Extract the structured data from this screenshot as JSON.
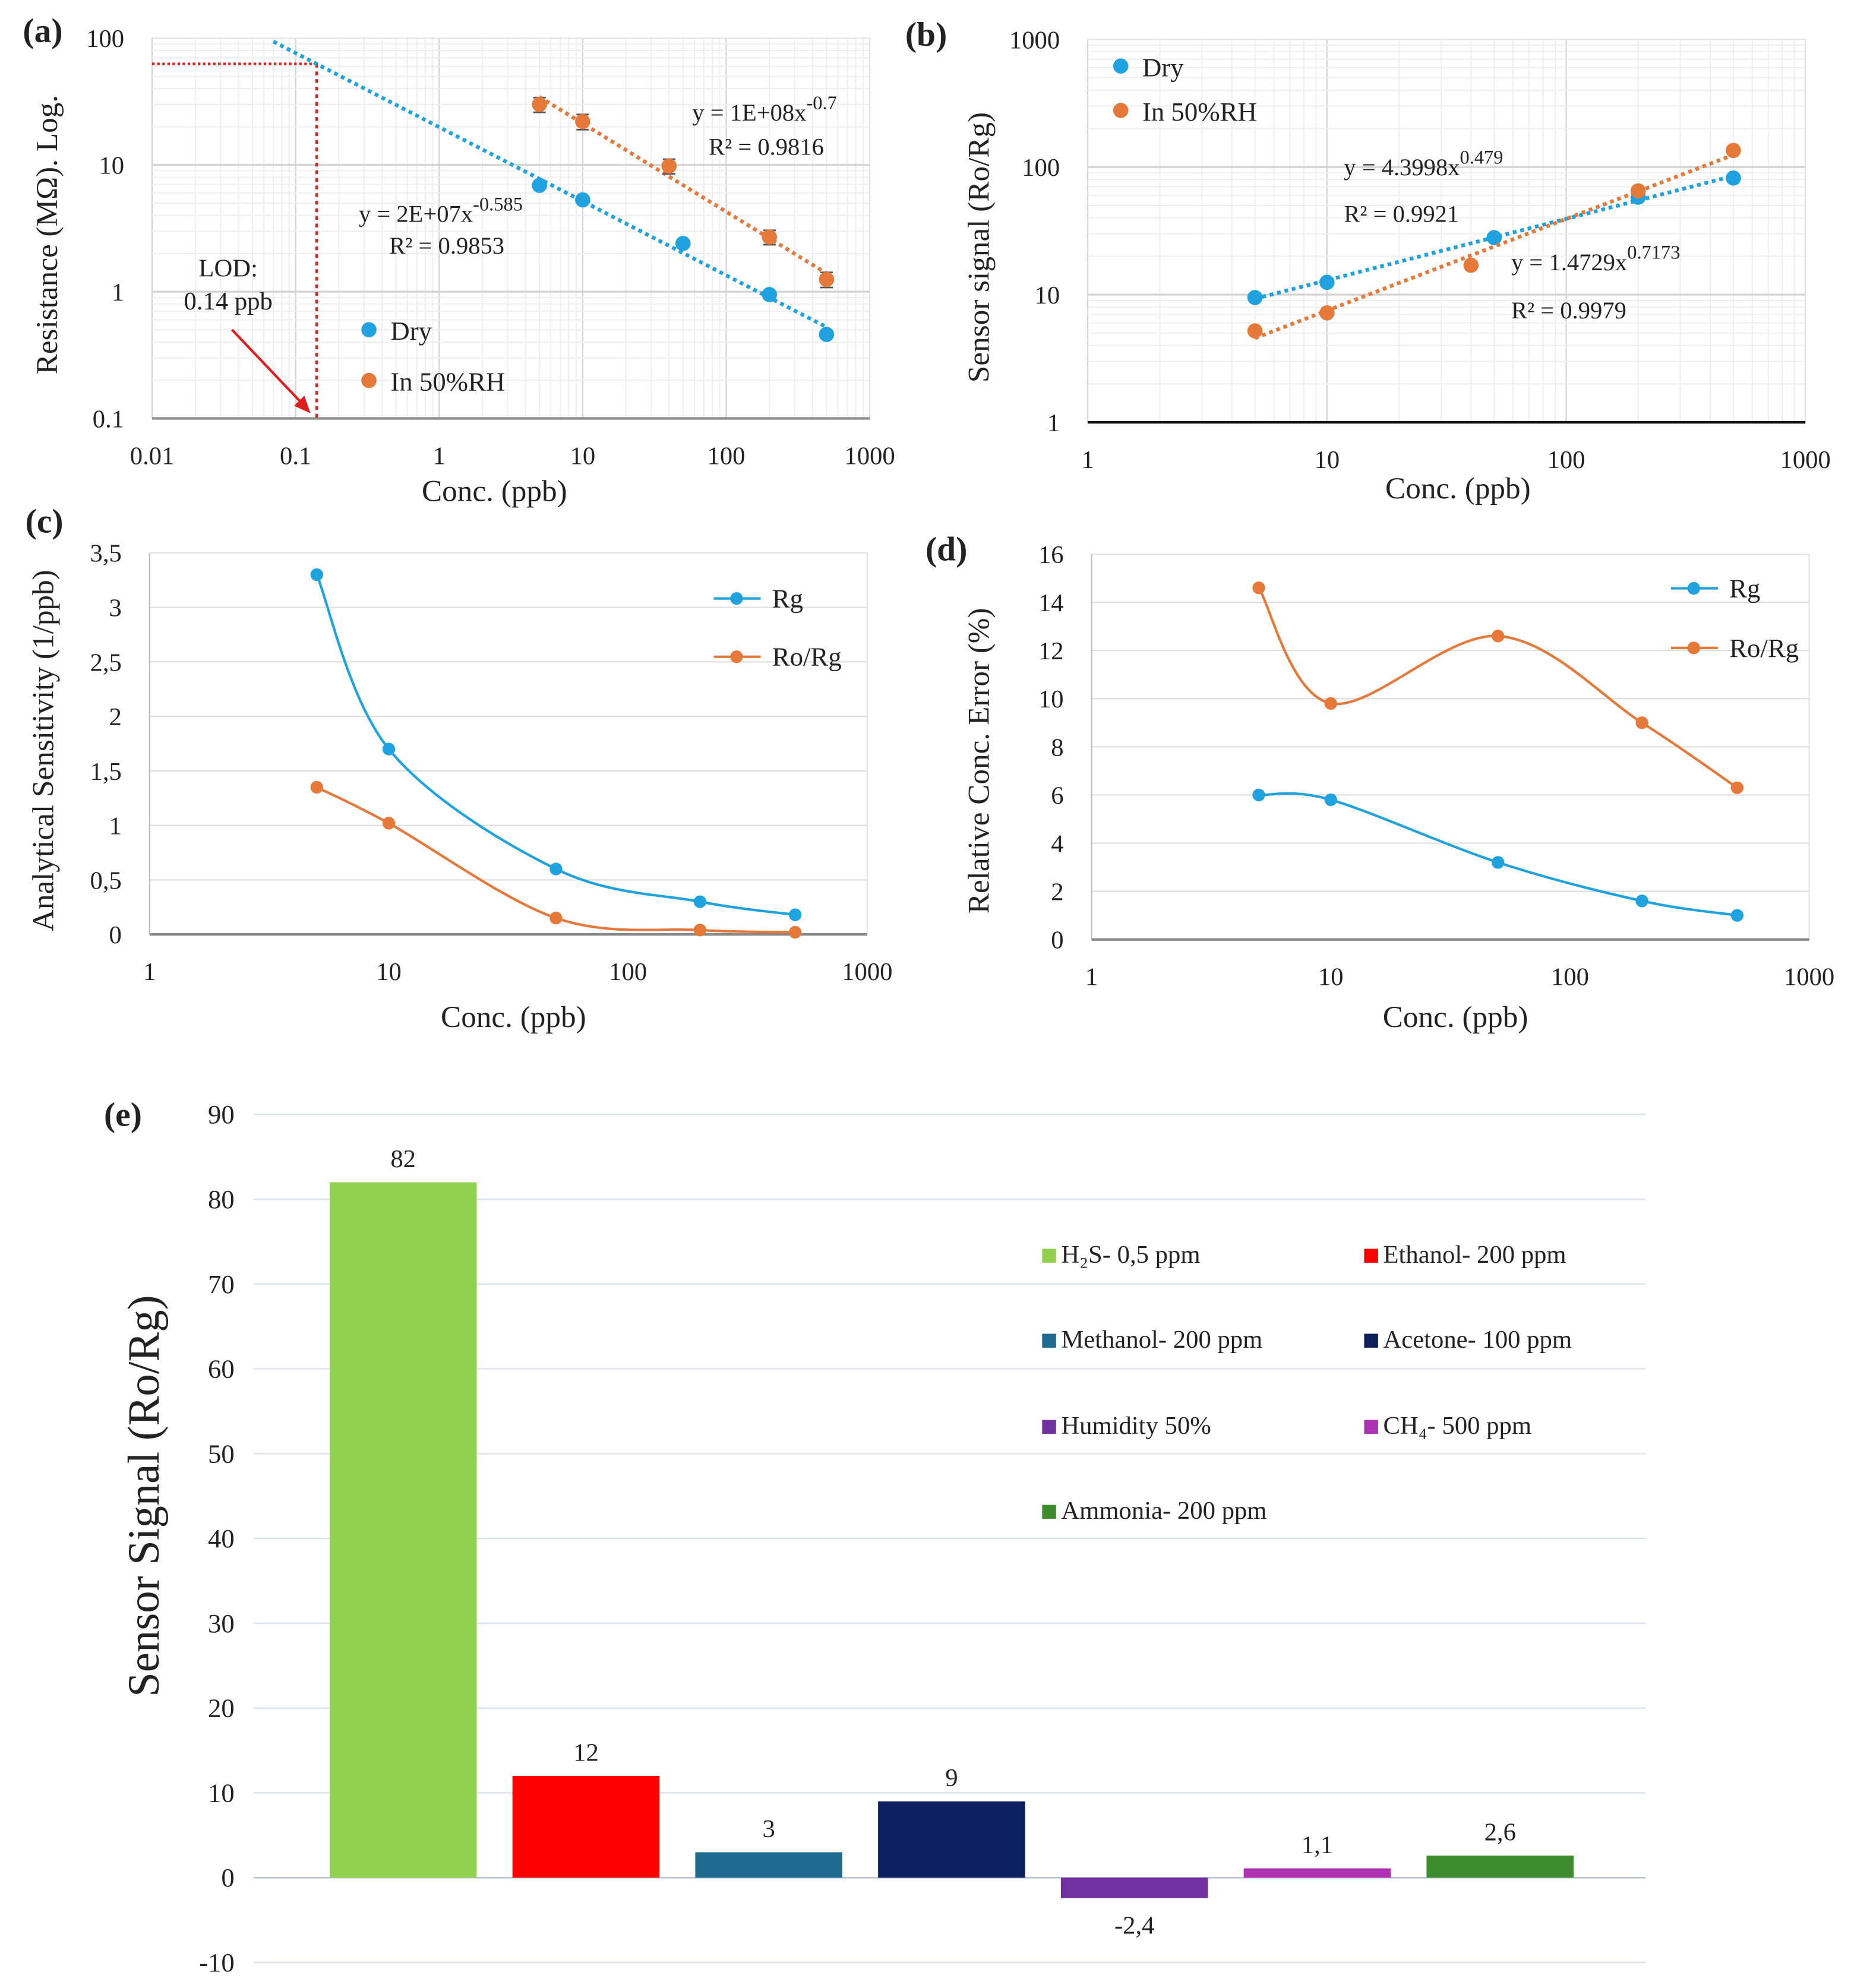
{
  "panel_labels": [
    "(a)",
    "(b)",
    "(c)",
    "(d)",
    "(e)"
  ],
  "colors": {
    "blue": "#1fa2dd",
    "orange": "#e4793a",
    "lod": "#dd1f1f"
  },
  "chart_data": [
    {
      "panel": "(a)",
      "type": "scatter",
      "xlabel": "Conc. (ppb)",
      "ylabel": "Resistance (MΩ). Log.",
      "xscale": "log",
      "yscale": "log",
      "xlim": [
        0.01,
        1000
      ],
      "ylim": [
        0.1,
        100
      ],
      "x_ticks": [
        "0.01",
        "0.1",
        "1",
        "10",
        "100",
        "1000"
      ],
      "y_ticks": [
        "0.1",
        "1",
        "10",
        "100"
      ],
      "grid": true,
      "legend_position": "bottom-center",
      "lod": {
        "title": "LOD:",
        "value_label": "0.14 ppb",
        "value": 0.14
      },
      "series": [
        {
          "name": "Dry",
          "color": "#1fa2dd",
          "x": [
            5,
            10,
            50,
            200,
            500
          ],
          "y": [
            6.9,
            5.3,
            2.4,
            0.95,
            0.46
          ],
          "trendline": {
            "type": "power",
            "equation": "y = 2E+07x",
            "exponent": "-0.585",
            "r2": "R² = 0.9853",
            "from": 0.07,
            "to": 500
          }
        },
        {
          "name": "In 50%RH",
          "color": "#e4793a",
          "x": [
            5,
            10,
            40,
            200,
            500
          ],
          "y": [
            30,
            22,
            9.8,
            2.7,
            1.25
          ],
          "error": [
            4,
            3,
            1.3,
            0.35,
            0.17
          ],
          "trendline": {
            "type": "power",
            "equation": "y = 1E+08x",
            "exponent": "-0.7",
            "r2": "R² = 0.9816",
            "from": 5,
            "to": 500
          }
        }
      ]
    },
    {
      "panel": "(b)",
      "type": "scatter",
      "xlabel": "Conc. (ppb)",
      "ylabel": "Sensor signal (Ro/Rg)",
      "xscale": "log",
      "yscale": "log",
      "xlim": [
        1,
        1000
      ],
      "ylim": [
        1,
        1000
      ],
      "x_ticks": [
        "1",
        "10",
        "100",
        "1000"
      ],
      "y_ticks": [
        "1",
        "10",
        "100",
        "1000"
      ],
      "grid": true,
      "legend_position": "top-left",
      "series": [
        {
          "name": "Dry",
          "color": "#1fa2dd",
          "x": [
            5,
            10,
            50,
            200,
            500
          ],
          "y": [
            9.5,
            12.5,
            28,
            58,
            82
          ],
          "trendline": {
            "type": "power",
            "equation": "y = 4.3998x",
            "exponent": "0.479",
            "r2": "R² = 0.9921",
            "from": 5,
            "to": 500
          }
        },
        {
          "name": "In 50%RH",
          "color": "#e4793a",
          "x": [
            5,
            10,
            40,
            200,
            500
          ],
          "y": [
            5.2,
            7.2,
            17,
            65,
            135
          ],
          "trendline": {
            "type": "power",
            "equation": "y = 1.4729x",
            "exponent": "0.7173",
            "r2": "R² = 0.9979",
            "from": 5,
            "to": 500
          }
        }
      ]
    },
    {
      "panel": "(c)",
      "type": "line",
      "xlabel": "Conc. (ppb)",
      "ylabel": "Analytical Sensitivity (1/ppb)",
      "xscale": "log",
      "yscale": "linear",
      "xlim": [
        1,
        1000
      ],
      "ylim": [
        0,
        3.5
      ],
      "x_ticks": [
        "1",
        "10",
        "100",
        "1000"
      ],
      "y_ticks": [
        "0",
        "0,5",
        "1",
        "1,5",
        "2",
        "2,5",
        "3",
        "3,5"
      ],
      "grid": true,
      "legend_position": "top-right",
      "series": [
        {
          "name": "Rg",
          "color": "#1fa2dd",
          "x": [
            5,
            10,
            50,
            200,
            500
          ],
          "y": [
            3.3,
            1.7,
            0.6,
            0.3,
            0.18
          ]
        },
        {
          "name": "Ro/Rg",
          "color": "#e4793a",
          "x": [
            5,
            10,
            50,
            200,
            500
          ],
          "y": [
            1.35,
            1.02,
            0.15,
            0.04,
            0.02
          ]
        }
      ]
    },
    {
      "panel": "(d)",
      "type": "line",
      "xlabel": "Conc. (ppb)",
      "ylabel": "Relative Conc. Error (%)",
      "xscale": "log",
      "yscale": "linear",
      "xlim": [
        1,
        1000
      ],
      "ylim": [
        0,
        16
      ],
      "x_ticks": [
        "1",
        "10",
        "100",
        "1000"
      ],
      "y_ticks": [
        "0",
        "2",
        "4",
        "6",
        "8",
        "10",
        "12",
        "14",
        "16"
      ],
      "grid": true,
      "legend_position": "top-right",
      "series": [
        {
          "name": "Rg",
          "color": "#1fa2dd",
          "x": [
            5,
            10,
            50,
            200,
            500
          ],
          "y": [
            6.0,
            5.8,
            3.2,
            1.6,
            1.0
          ]
        },
        {
          "name": "Ro/Rg",
          "color": "#e4793a",
          "x": [
            5,
            10,
            50,
            200,
            500
          ],
          "y": [
            14.6,
            9.8,
            12.6,
            9.0,
            6.3
          ]
        }
      ]
    },
    {
      "panel": "(e)",
      "type": "bar",
      "ylabel": "Sensor Signal (Ro/Rg)",
      "ylim": [
        -10,
        90
      ],
      "y_ticks": [
        "-10",
        "0",
        "10",
        "20",
        "30",
        "40",
        "50",
        "60",
        "70",
        "80",
        "90"
      ],
      "grid": true,
      "legend_position": "right",
      "categories": [
        "H₂S- 0,5 ppm",
        "Ethanol- 200 ppm",
        "Methanol- 200 ppm",
        "Acetone- 100 ppm",
        "Humidity 50%",
        "CH₄- 500 ppm",
        "Ammonia- 200 ppm"
      ],
      "values": [
        82,
        12,
        3,
        9,
        -2.4,
        1.1,
        2.6
      ],
      "value_labels": [
        "82",
        "12",
        "3",
        "9",
        "-2,4",
        "1,1",
        "2,6"
      ],
      "colors": [
        "#92d050",
        "#ff0000",
        "#1d6a8e",
        "#0c1f5e",
        "#7030a0",
        "#b032b4",
        "#3c8c2e"
      ]
    }
  ]
}
